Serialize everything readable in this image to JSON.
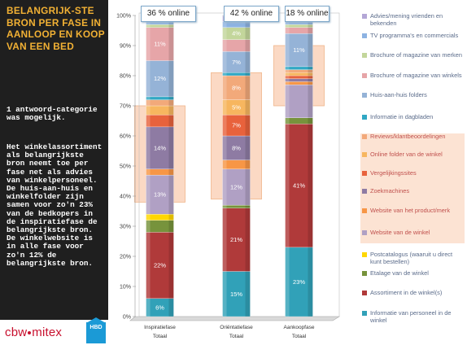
{
  "left_panel": {
    "title": "BELANGRIJK-STE BRON PER FASE IN AANLOOP EN KOOP VAN EEN BED",
    "note": "1 antwoord-categorie was mogelijk.",
    "body": "Het winkelassortiment als belangrijkste bron neemt toe per fase net als advies van winkelpersoneel. De huis-aan-huis en winkelfolder zijn samen voor zo'n 23% van de bedkopers in de inspiratiefase de belangrijkste bron. De winkelwebsite is in alle fase voor zo'n 12% de belangrijkste bron."
  },
  "logo": {
    "text_left": "cbw",
    "text_right": "mitex",
    "badge": "HBD"
  },
  "online_labels": [
    "36 % online",
    "42 % online",
    "18 % online"
  ],
  "colors": {
    "advies_vrienden": "#b4a7d6",
    "tv": "#8db3e2",
    "brochure_merken": "#c3d69b",
    "brochure_winkels": "#e6a5a8",
    "huis_folders": "#95b3d7",
    "dagbladen": "#31a8c4",
    "reviews": "#f2a97a",
    "folder_winkel": "#f7b65f",
    "vergelijking": "#e8623c",
    "zoekmachines": "#8e7ba3",
    "website_product": "#f79646",
    "website_winkel": "#b0a0c4",
    "postcatalogus": "#ffd700",
    "etalage": "#77933c",
    "assortiment": "#b03a3a",
    "personeel": "#31a1b8",
    "highlight": "#fbd9c4"
  },
  "chart_data": {
    "type": "bar",
    "stacked": true,
    "categories": [
      "Inspiratiefase",
      "Oriëntatiefase",
      "Aankoopfase"
    ],
    "group_label": "Totaal",
    "y_ticks": [
      "0%",
      "10%",
      "20%",
      "30%",
      "40%",
      "50%",
      "60%",
      "70%",
      "80%",
      "90%",
      "100%"
    ],
    "ylim": [
      0,
      100
    ],
    "series": [
      {
        "name": "Informatie van personeel in de winkel",
        "color_key": "personeel",
        "values": [
          6,
          15,
          23
        ],
        "labels": [
          "6%",
          "15%",
          "23%"
        ]
      },
      {
        "name": "Assortiment in de winkel(s)",
        "color_key": "assortiment",
        "values": [
          22,
          21,
          41
        ],
        "labels": [
          "22%",
          "21%",
          "41%"
        ]
      },
      {
        "name": "Etalage van de winkel",
        "color_key": "etalage",
        "values": [
          4,
          1,
          2
        ],
        "labels": [
          "",
          "",
          ""
        ]
      },
      {
        "name": "Postcatalogus (waaruit u direct kunt bestellen)",
        "color_key": "postcatalogus",
        "values": [
          2,
          0,
          0
        ],
        "labels": [
          "",
          "",
          ""
        ]
      },
      {
        "name": "Website van de winkel",
        "color_key": "website_winkel",
        "values": [
          13,
          12,
          11
        ],
        "labels": [
          "13%",
          "12%",
          ""
        ]
      },
      {
        "name": "Website van het product/merk",
        "color_key": "website_product",
        "values": [
          2,
          3,
          1
        ],
        "labels": [
          "",
          "",
          ""
        ]
      },
      {
        "name": "Zoekmachines",
        "color_key": "zoekmachines",
        "values": [
          14,
          8,
          1
        ],
        "labels": [
          "14%",
          "8%",
          ""
        ]
      },
      {
        "name": "Vergelijkingssites",
        "color_key": "vergelijking",
        "values": [
          4,
          7,
          1
        ],
        "labels": [
          "",
          "7%",
          ""
        ]
      },
      {
        "name": "Online folder van de winkel",
        "color_key": "folder_winkel",
        "values": [
          3,
          5,
          1
        ],
        "labels": [
          "",
          "5%",
          ""
        ]
      },
      {
        "name": "Reviews/klantbeoordelingen",
        "color_key": "reviews",
        "values": [
          2,
          8,
          1
        ],
        "labels": [
          "",
          "8%",
          ""
        ]
      },
      {
        "name": "Informatie in dagbladen",
        "color_key": "dagbladen",
        "values": [
          1,
          1,
          1
        ],
        "labels": [
          "",
          "",
          ""
        ]
      },
      {
        "name": "Huis-aan-huis folders",
        "color_key": "huis_folders",
        "values": [
          12,
          7,
          11
        ],
        "labels": [
          "12%",
          "7%",
          "11%"
        ]
      },
      {
        "name": "Brochure of magazine van winkels",
        "color_key": "brochure_winkels",
        "values": [
          11,
          4,
          2
        ],
        "labels": [
          "11%",
          "",
          ""
        ]
      },
      {
        "name": "Brochure of magazine van merken",
        "color_key": "brochure_merken",
        "values": [
          1,
          4,
          1
        ],
        "labels": [
          "",
          "4%",
          ""
        ]
      },
      {
        "name": "TV programma's en commercials",
        "color_key": "tv",
        "values": [
          1,
          2,
          1
        ],
        "labels": [
          "",
          "",
          ""
        ]
      },
      {
        "name": "Advies/mening vrienden en bekenden",
        "color_key": "advies_vrienden",
        "values": [
          2,
          2,
          2
        ],
        "labels": [
          "",
          "",
          ""
        ]
      }
    ],
    "highlight_ranges": [
      [
        38,
        70
      ],
      [
        39,
        81
      ],
      [
        70,
        90
      ]
    ],
    "legend_highlight": [
      "Reviews/klantbeoordelingen",
      "Online folder van de winkel",
      "Vergelijkingssites",
      "Zoekmachines",
      "Website van het product/merk",
      "Website van de winkel"
    ]
  },
  "legend": [
    "Advies/mening vrienden en bekenden",
    "TV programma's en commercials",
    "Brochure of magazine van merken",
    "Brochure of magazine van winkels",
    "Huis-aan-huis folders",
    "Informatie in dagbladen",
    "Reviews/klantbeoordelingen",
    "Online folder van de winkel",
    "Vergelijkingssites",
    "Zoekmachines",
    "Website van het product/merk",
    "Website van de winkel",
    "Postcatalogus (waaruit u direct kunt bestellen)",
    "Etalage van de winkel",
    "Assortiment in de winkel(s)",
    "Informatie van personeel in de winkel"
  ]
}
